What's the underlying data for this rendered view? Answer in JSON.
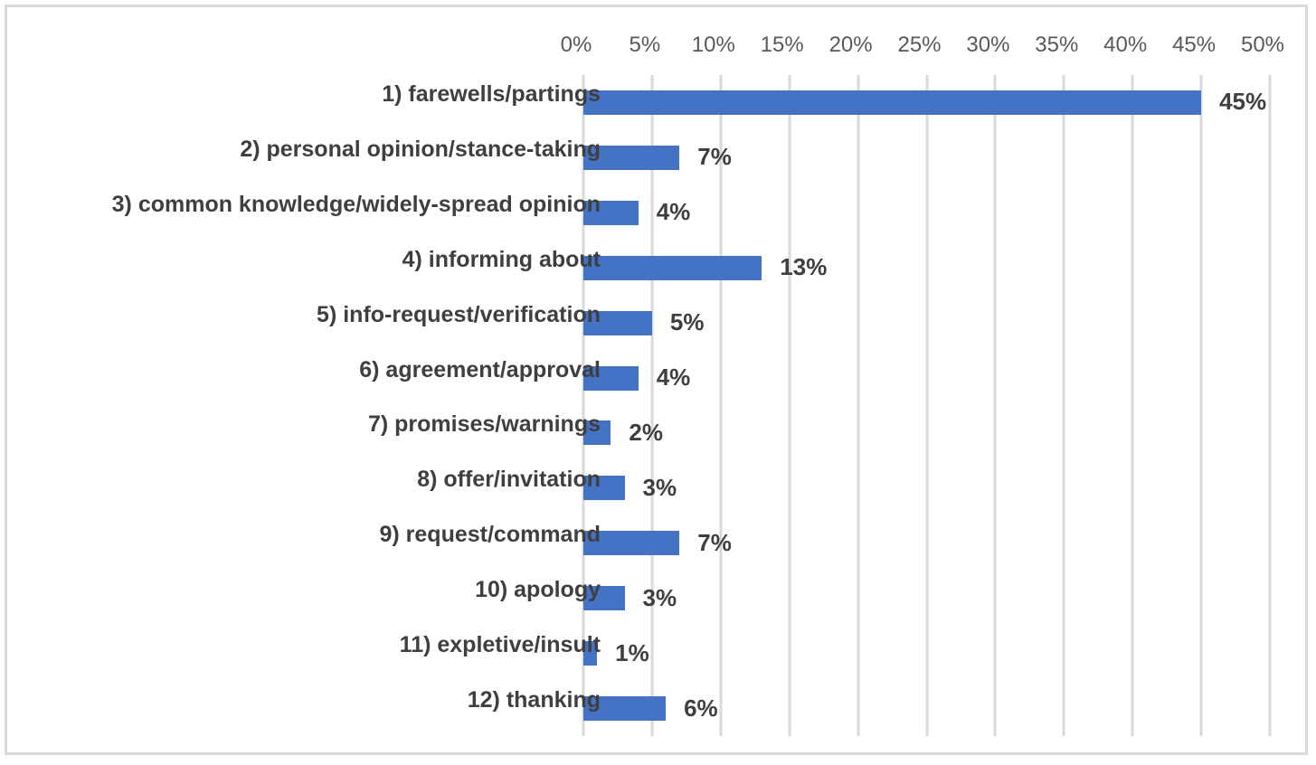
{
  "chart_data": {
    "type": "bar",
    "orientation": "horizontal",
    "title": "",
    "xlabel": "",
    "ylabel": "",
    "legend": false,
    "grid": true,
    "axis_position": "top",
    "xlim": [
      0,
      50
    ],
    "x_tick_step": 5,
    "x_tick_labels": [
      "0%",
      "5%",
      "10%",
      "15%",
      "20%",
      "25%",
      "30%",
      "35%",
      "40%",
      "45%",
      "50%"
    ],
    "categories": [
      "1) farewells/partings",
      "2) personal opinion/stance-taking",
      "3) common knowledge/widely-spread opinion",
      "4) informing about",
      "5) info-request/verification",
      "6) agreement/approval",
      "7) promises/warnings",
      "8) offer/invitation",
      "9) request/command",
      "10) apology",
      "11) expletive/insult",
      "12) thanking"
    ],
    "values": [
      45,
      7,
      4,
      13,
      5,
      4,
      2,
      3,
      7,
      3,
      1,
      6
    ],
    "value_labels": [
      "45%",
      "7%",
      "4%",
      "13%",
      "5%",
      "4%",
      "2%",
      "3%",
      "7%",
      "3%",
      "1%",
      "6%"
    ],
    "colors": {
      "bar_fill": "#4472C4",
      "gridline": "#D9D9D9",
      "frame_border": "#D9D9D9",
      "tick_text": "#595959",
      "label_text": "#3F3F3F",
      "background": "#FFFFFF"
    }
  }
}
